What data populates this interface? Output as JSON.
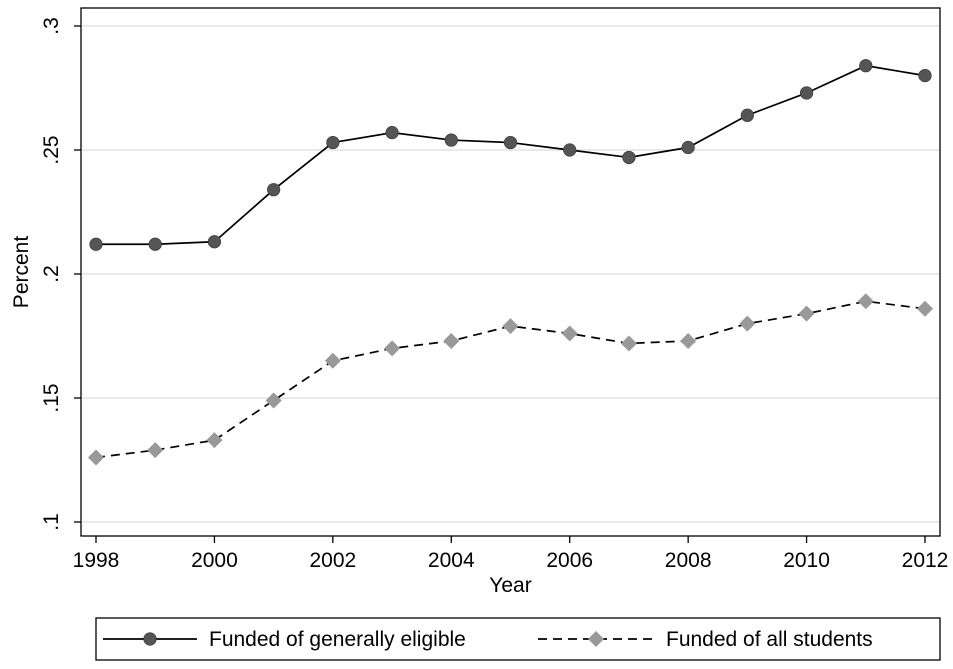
{
  "chart_data": {
    "type": "line",
    "title": "",
    "xlabel": "Year",
    "ylabel": "Percent",
    "xlim": [
      1998,
      2012
    ],
    "ylim": [
      0.1,
      0.3
    ],
    "grid": true,
    "legend_position": "bottom",
    "x_ticks": [
      1998,
      2000,
      2002,
      2004,
      2006,
      2008,
      2010,
      2012
    ],
    "x_tick_labels": [
      "1998",
      "2000",
      "2002",
      "2004",
      "2006",
      "2008",
      "2010",
      "2012"
    ],
    "y_ticks": [
      0.1,
      0.15,
      0.2,
      0.25,
      0.3
    ],
    "y_tick_labels": [
      ".1",
      ".15",
      ".2",
      ".25",
      ".3"
    ],
    "x": [
      1998,
      1999,
      2000,
      2001,
      2002,
      2003,
      2004,
      2005,
      2006,
      2007,
      2008,
      2009,
      2010,
      2011,
      2012
    ],
    "series": [
      {
        "name": "Funded of generally eligible",
        "color": "#000000",
        "marker_color": "#555555",
        "marker": "circle",
        "line_style": "solid",
        "values": [
          0.212,
          0.212,
          0.213,
          0.234,
          0.253,
          0.257,
          0.254,
          0.253,
          0.25,
          0.247,
          0.251,
          0.264,
          0.273,
          0.284,
          0.28
        ]
      },
      {
        "name": "Funded of all students",
        "color": "#000000",
        "marker_color": "#999999",
        "marker": "diamond",
        "line_style": "dashed",
        "values": [
          0.126,
          0.129,
          0.133,
          0.149,
          0.165,
          0.17,
          0.173,
          0.179,
          0.176,
          0.172,
          0.173,
          0.18,
          0.184,
          0.189,
          0.186
        ]
      }
    ]
  }
}
